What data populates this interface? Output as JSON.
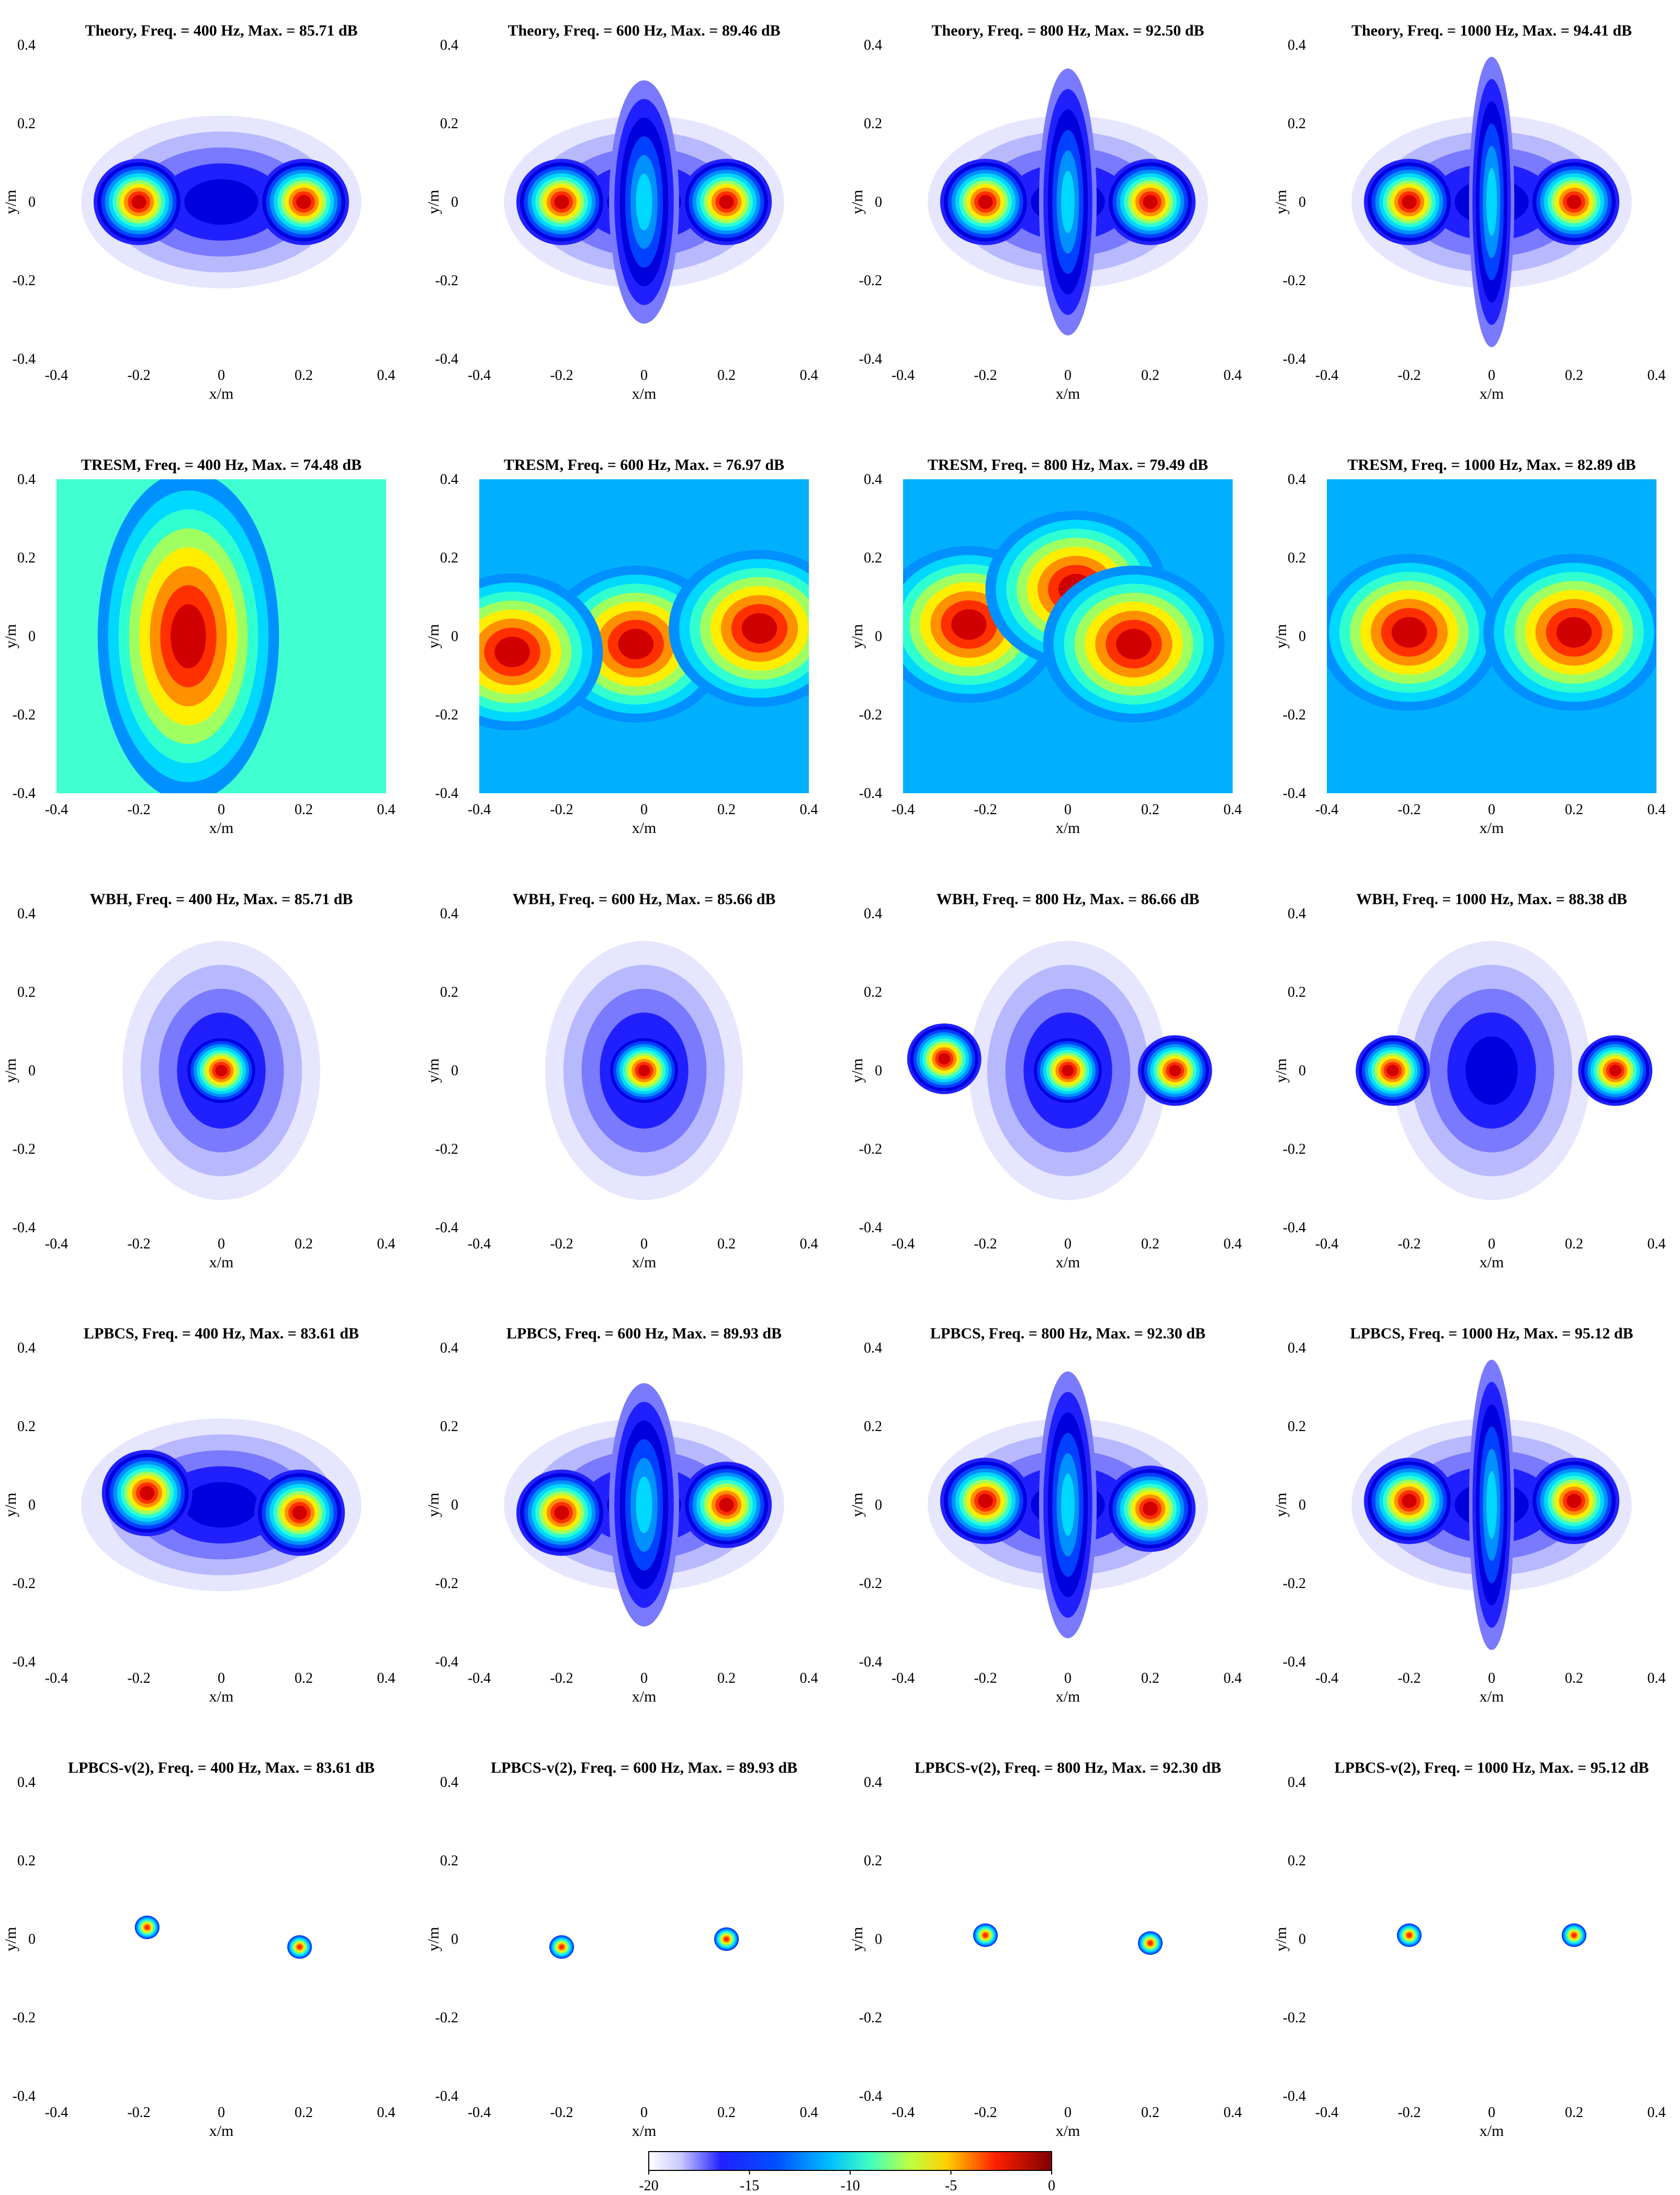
{
  "figure": {
    "panel_titles": [
      [
        "Theory,  Freq. = 400 Hz,  Max. = 85.71 dB",
        "Theory,  Freq. = 600 Hz,  Max. = 89.46 dB",
        "Theory,  Freq. = 800 Hz,  Max. = 92.50 dB",
        "Theory,  Freq. = 1000 Hz,  Max. = 94.41 dB"
      ],
      [
        "TRESM,  Freq. = 400 Hz,  Max. = 74.48 dB",
        "TRESM,  Freq. = 600 Hz,  Max. = 76.97 dB",
        "TRESM,  Freq. = 800 Hz,  Max. = 79.49 dB",
        "TRESM,  Freq. = 1000 Hz,  Max. = 82.89 dB"
      ],
      [
        "WBH,  Freq. = 400 Hz,  Max. = 85.71 dB",
        "WBH,  Freq. = 600 Hz,  Max. = 85.66 dB",
        "WBH,  Freq. = 800 Hz,  Max. = 86.66 dB",
        "WBH,  Freq. = 1000 Hz,  Max. = 88.38 dB"
      ],
      [
        "LPBCS,  Freq. = 400 Hz,  Max. = 83.61 dB",
        "LPBCS,  Freq. = 600 Hz,  Max. = 89.93 dB",
        "LPBCS,  Freq. = 800 Hz,  Max. = 92.30 dB",
        "LPBCS,  Freq. = 1000 Hz,  Max. = 95.12 dB"
      ],
      [
        "LPBCS-v(2),  Freq. = 400 Hz,  Max. = 83.61 dB",
        "LPBCS-v(2),  Freq. = 600 Hz,  Max. = 89.93 dB",
        "LPBCS-v(2),  Freq. = 800 Hz,  Max. = 92.30 dB",
        "LPBCS-v(2),  Freq. = 1000 Hz,  Max. = 95.12 dB"
      ]
    ],
    "xlabel": "x/m",
    "ylabel": "y/m",
    "colorbar_ticks": [
      "-20",
      "-15",
      "-10",
      "-5",
      "0"
    ]
  },
  "chart_data": {
    "type": "heatmap",
    "layout_grid": [
      5,
      4
    ],
    "methods": [
      "Theory",
      "TRESM",
      "WBH",
      "LPBCS",
      "LPBCS-v(2)"
    ],
    "frequencies_hz": [
      400,
      600,
      800,
      1000
    ],
    "max_db": [
      [
        85.71,
        89.46,
        92.5,
        94.41
      ],
      [
        74.48,
        76.97,
        79.49,
        82.89
      ],
      [
        85.71,
        85.66,
        86.66,
        88.38
      ],
      [
        83.61,
        89.93,
        92.3,
        95.12
      ],
      [
        83.61,
        89.93,
        92.3,
        95.12
      ]
    ],
    "xlabel": "x/m",
    "ylabel": "y/m",
    "xlim": [
      -0.4,
      0.4
    ],
    "ylim": [
      -0.4,
      0.4
    ],
    "xticks": [
      -0.4,
      -0.2,
      0,
      0.2,
      0.4
    ],
    "yticks": [
      -0.4,
      -0.2,
      0,
      0.2,
      0.4
    ],
    "colorbar": {
      "range": [
        -20,
        0
      ],
      "ticks": [
        -20,
        -15,
        -10,
        -5,
        0
      ],
      "colormap": "jet",
      "low_end_color": "#ffffff"
    },
    "grid": false,
    "sources_estimated": {
      "Theory": [
        [
          {
            "x": -0.2,
            "y": 0
          },
          {
            "x": 0.2,
            "y": 0
          }
        ],
        [
          {
            "x": -0.2,
            "y": 0
          },
          {
            "x": 0.2,
            "y": 0
          }
        ],
        [
          {
            "x": -0.2,
            "y": 0
          },
          {
            "x": 0.2,
            "y": 0
          }
        ],
        [
          {
            "x": -0.2,
            "y": 0
          },
          {
            "x": 0.2,
            "y": 0
          }
        ]
      ],
      "TRESM": [
        [
          {
            "x": -0.08,
            "y": 0
          }
        ],
        [
          {
            "x": -0.02,
            "y": -0.02
          },
          {
            "x": 0.28,
            "y": 0.02
          },
          {
            "x": -0.32,
            "y": -0.04
          }
        ],
        [
          {
            "x": -0.24,
            "y": 0.03
          },
          {
            "x": 0.02,
            "y": 0.12
          },
          {
            "x": 0.16,
            "y": -0.02
          }
        ],
        [
          {
            "x": -0.2,
            "y": 0.01
          },
          {
            "x": 0.2,
            "y": 0.01
          }
        ]
      ],
      "WBH": [
        [
          {
            "x": 0,
            "y": 0
          }
        ],
        [
          {
            "x": 0,
            "y": 0
          }
        ],
        [
          {
            "x": 0,
            "y": 0
          },
          {
            "x": -0.3,
            "y": 0.03
          },
          {
            "x": 0.26,
            "y": 0
          }
        ],
        [
          {
            "x": -0.24,
            "y": 0
          },
          {
            "x": 0.3,
            "y": 0
          }
        ]
      ],
      "LPBCS": [
        [
          {
            "x": -0.18,
            "y": 0.03
          },
          {
            "x": 0.19,
            "y": -0.02
          }
        ],
        [
          {
            "x": -0.2,
            "y": -0.02
          },
          {
            "x": 0.2,
            "y": 0
          }
        ],
        [
          {
            "x": -0.2,
            "y": 0.01
          },
          {
            "x": 0.2,
            "y": -0.01
          }
        ],
        [
          {
            "x": -0.2,
            "y": 0.01
          },
          {
            "x": 0.2,
            "y": 0.01
          }
        ]
      ],
      "LPBCS-v(2)": [
        [
          {
            "x": -0.18,
            "y": 0.03
          },
          {
            "x": 0.19,
            "y": -0.02
          }
        ],
        [
          {
            "x": -0.2,
            "y": -0.02
          },
          {
            "x": 0.2,
            "y": 0
          }
        ],
        [
          {
            "x": -0.2,
            "y": 0.01
          },
          {
            "x": 0.2,
            "y": -0.01
          }
        ],
        [
          {
            "x": -0.2,
            "y": 0.01
          },
          {
            "x": 0.2,
            "y": 0.01
          }
        ]
      ]
    }
  }
}
